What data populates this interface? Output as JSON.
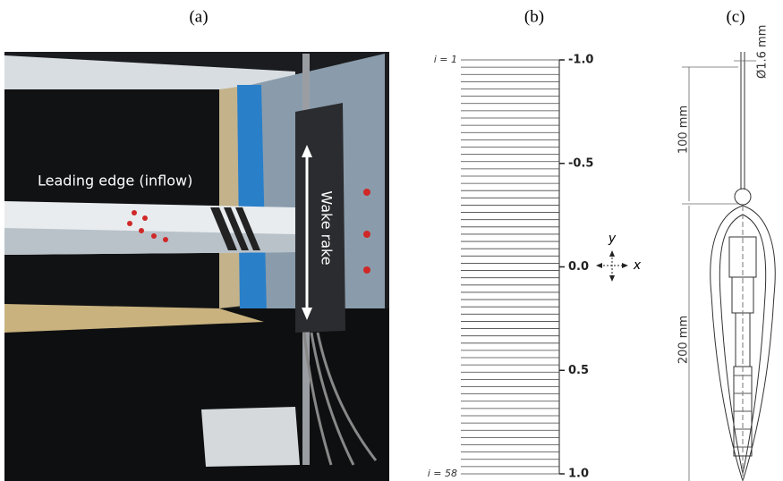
{
  "panels": {
    "a": {
      "label": "(a)",
      "annotations": [
        "Leading edge (inflow)",
        "Wake rake"
      ]
    },
    "b": {
      "label": "(b)",
      "ylim": [
        -1,
        1
      ],
      "yticks": [
        {
          "value": -1,
          "label": "-1.0"
        },
        {
          "value": -0.5,
          "label": "-0.5"
        },
        {
          "value": 0,
          "label": "0.0"
        },
        0.5,
        {
          "value": 1,
          "label": "1.0"
        }
      ],
      "probe_labels": [
        {
          "value": 1,
          "label": "i = 1"
        },
        {
          "value": 58,
          "label": "i = 58"
        }
      ],
      "axes_labels": {
        "x": "x",
        "y": "y"
      }
    },
    "c": {
      "label": "(c)",
      "dimensions": [
        "Ø1.6 mm",
        "100 mm",
        "200 mm"
      ]
    }
  }
}
